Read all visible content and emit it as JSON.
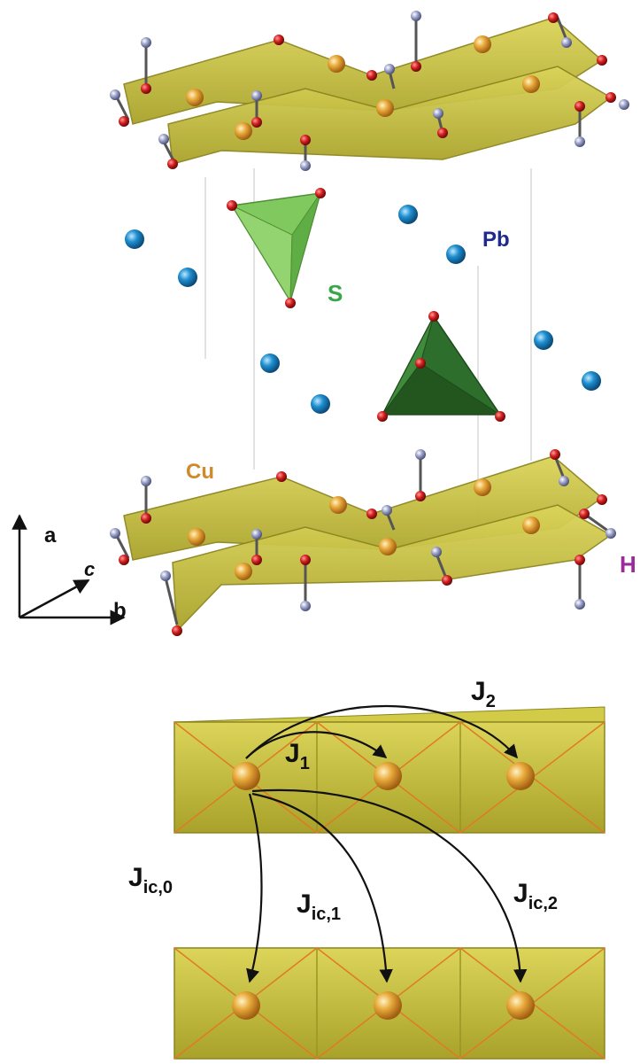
{
  "crystal": {
    "labels": {
      "pb": "Pb",
      "s": "S",
      "cu": "Cu",
      "h": "H"
    },
    "axes": {
      "a": "a",
      "b": "b",
      "c": "c"
    }
  },
  "exchange": {
    "j1": {
      "base": "J",
      "sub": "1"
    },
    "j2": {
      "base": "J",
      "sub": "2"
    },
    "jic0": {
      "base": "J",
      "sub": "ic,0"
    },
    "jic1": {
      "base": "J",
      "sub": "ic,1"
    },
    "jic2": {
      "base": "J",
      "sub": "ic,2"
    }
  },
  "colors": {
    "pb_atom": "#1e8fd0",
    "sulfate_light": "#6fbf54",
    "sulfate_dark": "#2e6e2c",
    "cu_plaquette": "#c9c13a",
    "cu_atom": "#e8a93b",
    "oxygen": "#d42020",
    "hydrogen": "#9aa0c8",
    "label_pb": "#1f2a8c",
    "label_s": "#3aa64a",
    "label_cu": "#d1892a",
    "label_h": "#9b2a9b"
  }
}
